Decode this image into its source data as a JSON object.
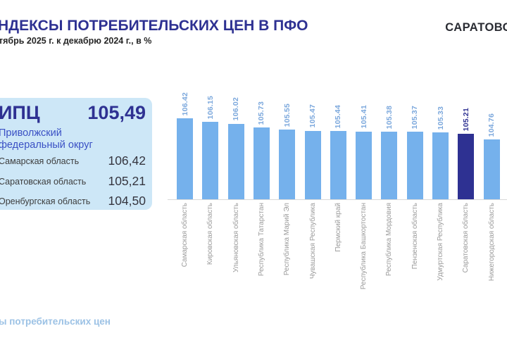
{
  "header": {
    "title": "НДЕКСЫ ПОТРЕБИТЕЛЬСКИХ ЦЕН В ПФО",
    "subtitle": "тябрь 2025 г. к декабрю 2024 г., в %",
    "logo": "САРАТОВС"
  },
  "summary_card": {
    "label": "ИПЦ",
    "value": "105,49",
    "region_line1": "Приволжский",
    "region_line2": "федеральный округ",
    "rows": [
      {
        "label": "Самарская область",
        "value": "106,42"
      },
      {
        "label": "Саратовская область",
        "value": "105,21"
      },
      {
        "label": "Оренбургская область",
        "value": "104,50"
      }
    ]
  },
  "footer": {
    "caption": "ы потребительских цен"
  },
  "chart_data": {
    "type": "bar",
    "title": "Индексы потребительских цен в ПФО",
    "xlabel": "",
    "ylabel": "",
    "categories": [
      "Самарская область",
      "Кировская область",
      "Ульяновская область",
      "Республика Татарстан",
      "Республика Марий Эл",
      "Чувашская Республика",
      "Пермский край",
      "Республика Башкортостан",
      "Республика Мордовия",
      "Пензенская область",
      "Удмуртская Республика",
      "Саратовская область",
      "Нижегородская область"
    ],
    "values": [
      106.42,
      106.15,
      106.02,
      105.73,
      105.55,
      105.47,
      105.44,
      105.41,
      105.38,
      105.37,
      105.33,
      105.21,
      104.76
    ],
    "value_labels": [
      "106.42",
      "106.15",
      "106.02",
      "105.73",
      "105.55",
      "105.47",
      "105.44",
      "105.41",
      "105.38",
      "105.37",
      "105.33",
      "105.21",
      "104.76"
    ],
    "highlight_index": 11,
    "axis_min": 100,
    "ylim": [
      100,
      107
    ],
    "grid": false,
    "legend": false,
    "bar_color": "#75B1EC",
    "highlight_color": "#2E3192",
    "value_label_color": "#7AA7DC",
    "value_label_highlight_color": "#2E3192",
    "category_label_color": "#9B9B9B",
    "accent_color": "#2E3192",
    "card_background": "#CDE7F7"
  }
}
